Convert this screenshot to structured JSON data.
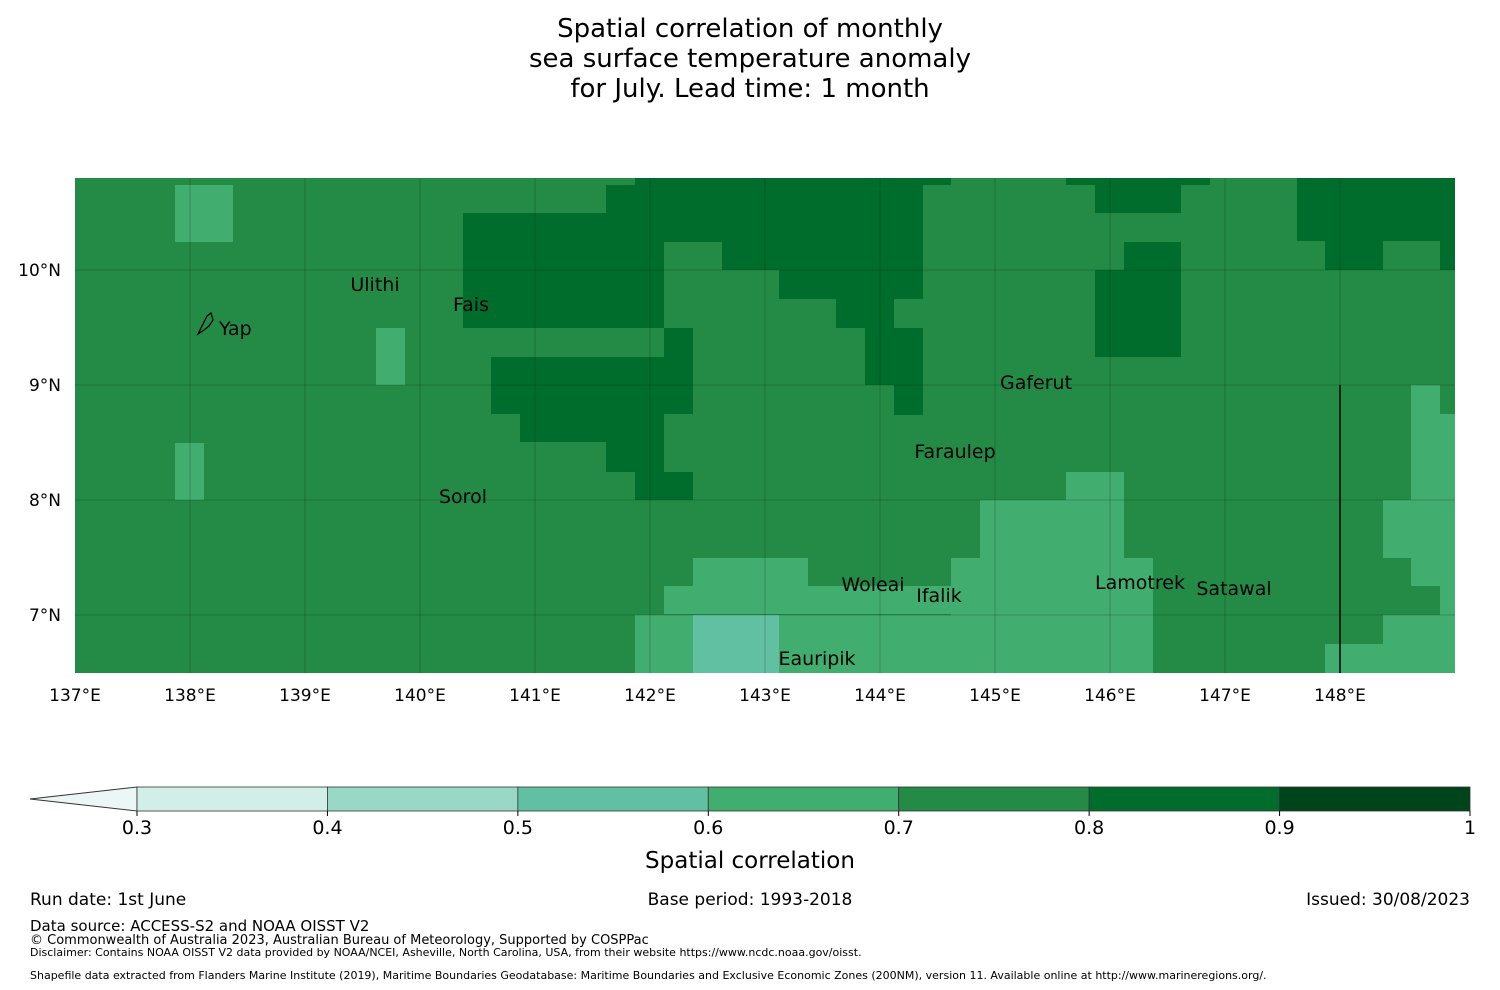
{
  "title": {
    "line1": "Spatial correlation of monthly",
    "line2": "sea surface temperature anomaly",
    "line3": "for July. Lead time: 1 month"
  },
  "map": {
    "lon_range": [
      137,
      149
    ],
    "lat_range": [
      6.5,
      10.8
    ],
    "lon_ticks": [
      "137°E",
      "138°E",
      "139°E",
      "140°E",
      "141°E",
      "142°E",
      "143°E",
      "144°E",
      "145°E",
      "146°E",
      "147°E",
      "148°E"
    ],
    "lat_ticks": [
      "10°N",
      "9°N",
      "8°N",
      "7°N"
    ],
    "background_class": "0.7-0.8",
    "grid_on": true,
    "islands": [
      {
        "name": "Yap",
        "lon": 138.1,
        "lat": 9.5
      },
      {
        "name": "Ulithi",
        "lon": 139.7,
        "lat": 10.0
      },
      {
        "name": "Fais",
        "lon": 140.5,
        "lat": 9.75
      },
      {
        "name": "Gaferut",
        "lon": 145.4,
        "lat": 9.2
      },
      {
        "name": "Faraulep",
        "lon": 144.5,
        "lat": 8.6
      },
      {
        "name": "Sorol",
        "lon": 140.4,
        "lat": 8.1
      },
      {
        "name": "Woleai",
        "lon": 143.9,
        "lat": 7.35
      },
      {
        "name": "Ifalik",
        "lon": 144.45,
        "lat": 7.25
      },
      {
        "name": "Lamotrek",
        "lon": 146.3,
        "lat": 7.45
      },
      {
        "name": "Satawal",
        "lon": 147.0,
        "lat": 7.35
      },
      {
        "name": "Eauripik",
        "lon": 143.05,
        "lat": 6.7
      }
    ]
  },
  "colorbar": {
    "label": "Spatial correlation",
    "ticks": [
      "0.3",
      "0.4",
      "0.5",
      "0.6",
      "0.7",
      "0.8",
      "0.9",
      "1"
    ],
    "colors": [
      "#d2efe7",
      "#98d8c5",
      "#62c0a2",
      "#41ad6f",
      "#238b45",
      "#006d2c",
      "#00441b"
    ],
    "extend_color": "#eaf7f4"
  },
  "footer": {
    "run_date": "Run date: 1st June",
    "base_period": "Base period: 1993-2018",
    "issued": "Issued: 30/08/2023",
    "data_source": "Data source: ACCESS-S2 and NOAA OISST V2",
    "copyright": "© Commonwealth of Australia 2023, Australian Bureau of Meteorology, Supported by COSPPac",
    "disclaimer": "Disclaimer: Contains NOAA OISST V2 data provided by NOAA/NCEI, Asheville, North Carolina, USA, from their website https://www.ncdc.noaa.gov/oisst.",
    "shapefile": "Shapefile data extracted from Flanders Marine Institute (2019), Maritime Boundaries Geodatabase: Maritime Boundaries and Exclusive Economic Zones (200NM), version 11. Available online at http://www.marineregions.org/."
  }
}
